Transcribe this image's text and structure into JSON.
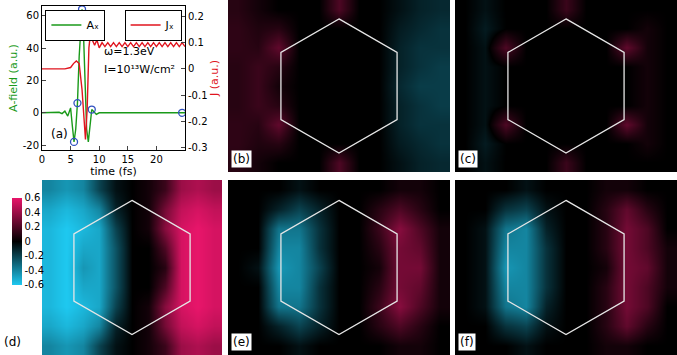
{
  "chart_data": [
    {
      "type": "line",
      "label": "(a)",
      "xlabel": "time (fs)",
      "ylabel": "A-field (a.u.)",
      "y2label": "J (a.u.)",
      "annotations": [
        "ω=1.3eV",
        "I=10¹³W/cm²"
      ],
      "xlim": [
        0,
        25
      ],
      "xticks": [
        0,
        5,
        10,
        15,
        20
      ],
      "ylim": [
        -23,
        66
      ],
      "yticks": [
        -20,
        0,
        20,
        40,
        60
      ],
      "y2lim": [
        -0.31,
        0.24
      ],
      "y2ticks": [
        -0.3,
        -0.2,
        -0.1,
        0,
        0.1,
        0.2
      ],
      "grid": false,
      "legend": "top",
      "series": [
        {
          "name": "Aₓ",
          "color": "#1a9a1a",
          "line_style": "solid",
          "axis": "y",
          "x": [
            0,
            1,
            2,
            3,
            3.5,
            4,
            4.5,
            5,
            5.3,
            5.6,
            5.9,
            6.2,
            6.5,
            6.8,
            7.0,
            7.2,
            7.5,
            7.8,
            8.1,
            8.4,
            8.7,
            9,
            9.5,
            10,
            11,
            12,
            15,
            20,
            25
          ],
          "values": [
            0,
            0,
            0,
            0.3,
            -0.5,
            1,
            -2,
            3,
            -8,
            -18,
            -10,
            6,
            35,
            58,
            64,
            55,
            20,
            -10,
            -18,
            -8,
            2,
            1,
            -1,
            0,
            0,
            0,
            0,
            0,
            0
          ]
        },
        {
          "name": "Jₓ",
          "color": "#e0141e",
          "line_style": "solid",
          "axis": "y2",
          "x": [
            0,
            4,
            5,
            5.5,
            6,
            6.5,
            7,
            7.3,
            7.6,
            7.9,
            8.2,
            8.5,
            8.8,
            9.2,
            9.6,
            10,
            10.5,
            11,
            11.5,
            12,
            12.5,
            13,
            13.5,
            14,
            14.5,
            15,
            15.5,
            16,
            16.5,
            17,
            17.5,
            18,
            18.5,
            19,
            19.5,
            20,
            20.5,
            21,
            21.5,
            22,
            22.5,
            23,
            23.5,
            24,
            24.5,
            25
          ],
          "values": [
            0,
            0,
            0.005,
            0.02,
            0.03,
            0.02,
            -0.08,
            -0.2,
            -0.27,
            -0.15,
            0.08,
            0.14,
            0.11,
            0.09,
            0.11,
            0.08,
            0.1,
            0.085,
            0.1,
            0.085,
            0.1,
            0.085,
            0.1,
            0.085,
            0.1,
            0.085,
            0.1,
            0.085,
            0.1,
            0.085,
            0.1,
            0.085,
            0.1,
            0.085,
            0.1,
            0.085,
            0.1,
            0.085,
            0.1,
            0.085,
            0.1,
            0.085,
            0.1,
            0.085,
            0.1,
            0.085
          ]
        },
        {
          "type": "scatter",
          "marker": "circle-open",
          "color": "#3050c0",
          "axis": "y",
          "x": [
            5.6,
            6.2,
            7.0,
            8.7,
            24.5
          ],
          "values": [
            -18,
            6,
            64,
            2,
            0
          ]
        }
      ]
    },
    {
      "type": "heatmap",
      "label": "(b)",
      "zlim": [
        -0.6,
        0.6
      ],
      "cells": [
        [
          0.1,
          0.05,
          0,
          0,
          0,
          0.2,
          0,
          0,
          -0.05,
          -0.1,
          -0.12
        ],
        [
          0.12,
          0.08,
          0.1,
          0,
          0,
          0,
          0,
          0,
          -0.08,
          -0.12,
          -0.15
        ],
        [
          0.12,
          0.1,
          0.25,
          0,
          0,
          0,
          0,
          0,
          -0.1,
          -0.15,
          -0.15
        ],
        [
          0.1,
          0.15,
          0.1,
          0,
          0,
          0,
          0,
          0,
          -0.1,
          -0.15,
          -0.18
        ],
        [
          0.1,
          0.15,
          0.05,
          0,
          0,
          0,
          0,
          0,
          -0.12,
          -0.18,
          -0.18
        ],
        [
          0.1,
          0.15,
          0.1,
          0,
          0,
          0,
          0,
          0,
          -0.1,
          -0.15,
          -0.18
        ],
        [
          0.12,
          0.1,
          0.25,
          0,
          0,
          0,
          0,
          0,
          -0.1,
          -0.15,
          -0.15
        ],
        [
          0.12,
          0.08,
          0.1,
          0,
          0,
          0,
          0,
          0,
          -0.08,
          -0.12,
          -0.15
        ],
        [
          0.1,
          0.05,
          0,
          0,
          0,
          0.2,
          0,
          0,
          -0.05,
          -0.1,
          -0.12
        ]
      ]
    },
    {
      "type": "heatmap",
      "label": "(c)",
      "zlim": [
        -0.6,
        0.6
      ],
      "cells": [
        [
          0,
          -0.05,
          0,
          0,
          0,
          0.15,
          0,
          0,
          0,
          0,
          0
        ],
        [
          0,
          -0.08,
          0,
          0,
          0,
          0,
          0,
          0,
          0,
          0.05,
          0
        ],
        [
          0,
          -0.05,
          0.2,
          0,
          0,
          0,
          0,
          0,
          0.25,
          0.05,
          0
        ],
        [
          0,
          -0.05,
          0,
          0,
          0,
          0,
          0,
          0,
          0,
          0.05,
          0
        ],
        [
          0,
          -0.05,
          0,
          0,
          0,
          0,
          0,
          0,
          0,
          0.05,
          0
        ],
        [
          0,
          -0.05,
          0,
          0,
          0,
          0,
          0,
          0,
          0,
          0.05,
          0
        ],
        [
          0,
          -0.05,
          0.2,
          0,
          0,
          0,
          0,
          0,
          0.25,
          0.05,
          0
        ],
        [
          0,
          -0.08,
          0,
          0,
          0,
          0,
          0,
          0,
          0,
          0.05,
          0
        ],
        [
          0,
          -0.05,
          0,
          0,
          0,
          0.15,
          0,
          0,
          0,
          0,
          0
        ]
      ]
    },
    {
      "type": "heatmap",
      "label": "(d)",
      "zlim": [
        -0.6,
        0.6
      ],
      "zticks": [
        -0.6,
        -0.4,
        -0.2,
        0,
        0.2,
        0.4,
        0.6
      ],
      "cells": [
        [
          -0.4,
          -0.45,
          -0.4,
          -0.2,
          -0.05,
          0,
          0.05,
          0.15,
          0.4,
          0.45,
          0.4
        ],
        [
          -0.5,
          -0.55,
          -0.5,
          -0.4,
          -0.1,
          0,
          0.05,
          0.3,
          0.5,
          0.55,
          0.5
        ],
        [
          -0.55,
          -0.6,
          -0.55,
          -0.5,
          -0.2,
          0,
          0.05,
          0.35,
          0.55,
          0.6,
          0.55
        ],
        [
          -0.55,
          -0.6,
          -0.5,
          -0.5,
          -0.25,
          0,
          0,
          0.2,
          0.55,
          0.6,
          0.55
        ],
        [
          -0.55,
          -0.6,
          -0.45,
          -0.5,
          -0.25,
          0,
          0,
          0.1,
          0.55,
          0.6,
          0.55
        ],
        [
          -0.55,
          -0.6,
          -0.5,
          -0.5,
          -0.25,
          0,
          0,
          0.2,
          0.55,
          0.6,
          0.55
        ],
        [
          -0.55,
          -0.6,
          -0.55,
          -0.5,
          -0.2,
          0,
          0.05,
          0.35,
          0.55,
          0.6,
          0.55
        ],
        [
          -0.5,
          -0.55,
          -0.5,
          -0.4,
          -0.1,
          0,
          0.05,
          0.3,
          0.5,
          0.55,
          0.5
        ],
        [
          -0.4,
          -0.45,
          -0.4,
          -0.2,
          -0.05,
          0,
          0.05,
          0.15,
          0.4,
          0.45,
          0.4
        ]
      ]
    },
    {
      "type": "heatmap",
      "label": "(e)",
      "zlim": [
        -0.6,
        0.6
      ],
      "cells": [
        [
          0,
          0,
          0,
          -0.05,
          0,
          0,
          0,
          0,
          0.05,
          0.05,
          0
        ],
        [
          0,
          0,
          -0.1,
          -0.2,
          -0.1,
          0,
          0,
          0.1,
          0.2,
          0.1,
          0
        ],
        [
          0,
          0,
          -0.35,
          -0.35,
          -0.15,
          0,
          0,
          0.15,
          0.35,
          0.2,
          0.05
        ],
        [
          0,
          0,
          -0.4,
          -0.4,
          -0.15,
          0,
          0,
          0.1,
          0.3,
          0.25,
          0.05
        ],
        [
          0,
          -0.05,
          -0.45,
          -0.4,
          -0.2,
          0,
          0,
          0.05,
          0.3,
          0.3,
          0.05
        ],
        [
          0,
          0,
          -0.4,
          -0.4,
          -0.15,
          0,
          0,
          0.1,
          0.3,
          0.25,
          0.05
        ],
        [
          0,
          0,
          -0.35,
          -0.35,
          -0.15,
          0,
          0,
          0.15,
          0.35,
          0.2,
          0.05
        ],
        [
          0,
          0,
          -0.1,
          -0.2,
          -0.1,
          0,
          0,
          0.1,
          0.2,
          0.1,
          0
        ],
        [
          0,
          0,
          0,
          -0.05,
          0,
          0,
          0,
          0,
          0.05,
          0.05,
          0
        ]
      ]
    },
    {
      "type": "heatmap",
      "label": "(f)",
      "zlim": [
        -0.6,
        0.6
      ],
      "cells": [
        [
          0,
          0,
          0,
          -0.05,
          0,
          0,
          0,
          0.05,
          0.05,
          0,
          0
        ],
        [
          0,
          0,
          -0.15,
          -0.2,
          -0.05,
          0,
          0,
          0.1,
          0.25,
          0.1,
          0
        ],
        [
          0,
          -0.05,
          -0.35,
          -0.4,
          -0.1,
          0,
          0,
          0.1,
          0.3,
          0.2,
          0
        ],
        [
          0,
          -0.05,
          -0.4,
          -0.4,
          -0.15,
          0,
          0,
          0.1,
          0.3,
          0.2,
          0.05
        ],
        [
          0,
          -0.05,
          -0.45,
          -0.4,
          -0.15,
          0,
          0,
          0.05,
          0.3,
          0.25,
          0.05
        ],
        [
          0,
          -0.05,
          -0.4,
          -0.4,
          -0.15,
          0,
          0,
          0.1,
          0.3,
          0.2,
          0.05
        ],
        [
          0,
          -0.05,
          -0.35,
          -0.4,
          -0.1,
          0,
          0,
          0.1,
          0.3,
          0.2,
          0
        ],
        [
          0,
          0,
          -0.15,
          -0.2,
          -0.05,
          0,
          0,
          0.1,
          0.25,
          0.1,
          0
        ],
        [
          0,
          0,
          0,
          -0.05,
          0,
          0,
          0,
          0.05,
          0.05,
          0,
          0
        ]
      ]
    }
  ]
}
